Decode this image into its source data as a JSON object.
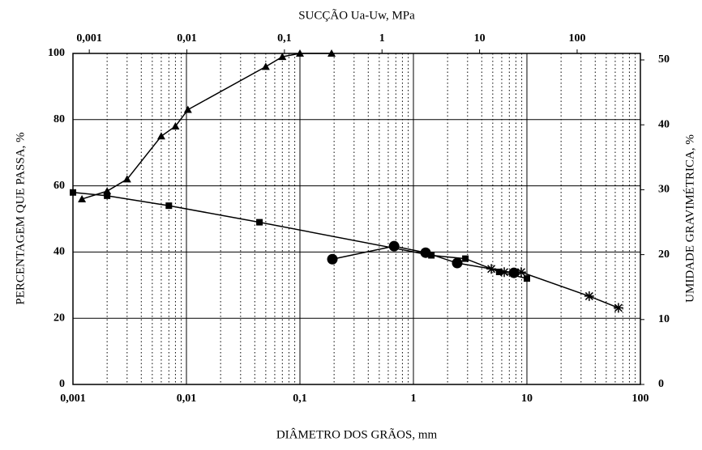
{
  "chart_data": {
    "type": "scatter",
    "xlabel": "DIÂMETRO DOS GRÃOS, mm",
    "x2label": "SUCÇÃO Ua-Uw, MPa",
    "ylabel": "PERCENTAGEM QUE PASSA, %",
    "y2label": "UMIDADE GRAVIMÉTRICA, %",
    "xscale": "log",
    "x2scale": "log",
    "grid": true,
    "xlim": [
      0.001,
      100
    ],
    "xticks": [
      {
        "value": 0.001,
        "label": "0,001"
      },
      {
        "value": 0.01,
        "label": "0,01"
      },
      {
        "value": 0.1,
        "label": "0,1"
      },
      1,
      10,
      100
    ],
    "x2lim": [
      0.00068,
      445
    ],
    "x2ticks": [
      {
        "value": 0.001,
        "label": "0,001"
      },
      {
        "value": 0.01,
        "label": "0,01"
      },
      {
        "value": 0.1,
        "label": "0,1"
      },
      1,
      10,
      100
    ],
    "ylim": [
      0,
      100
    ],
    "yticks": [
      0,
      20,
      40,
      60,
      80,
      100
    ],
    "y2lim": [
      0,
      51
    ],
    "y2ticks": [
      0,
      10,
      20,
      30,
      40,
      50
    ],
    "series": [
      {
        "marker": "triangle",
        "color": "#000000",
        "x": [
          0.0012,
          0.002,
          0.003,
          0.006,
          0.008,
          0.0103,
          0.05,
          0.07,
          0.1,
          0.19
        ],
        "values": [
          56,
          58.4,
          62,
          75,
          78,
          83,
          96,
          99,
          100,
          100
        ]
      },
      {
        "marker": "square",
        "color": "#000000",
        "x": [
          0.001,
          0.002,
          0.007,
          0.044,
          1.44,
          2.87,
          5.7,
          10
        ],
        "values": [
          58,
          57,
          54,
          49,
          39,
          38,
          34,
          32
        ]
      },
      {
        "marker": "circle",
        "color": "#000000",
        "axis": "y2",
        "xaxis": "x2",
        "x": [
          0.31,
          1.33,
          2.8,
          5.9,
          22.5
        ],
        "values": [
          19.3,
          21.3,
          20.3,
          18.7,
          17.2
        ]
      },
      {
        "marker": "asterisk",
        "color": "#000000",
        "axis": "y2",
        "xaxis": "x2",
        "x": [
          13.2,
          17.9,
          26.7,
          133,
          265
        ],
        "values": [
          17.8,
          17.3,
          17.3,
          13.6,
          11.8
        ]
      }
    ]
  }
}
